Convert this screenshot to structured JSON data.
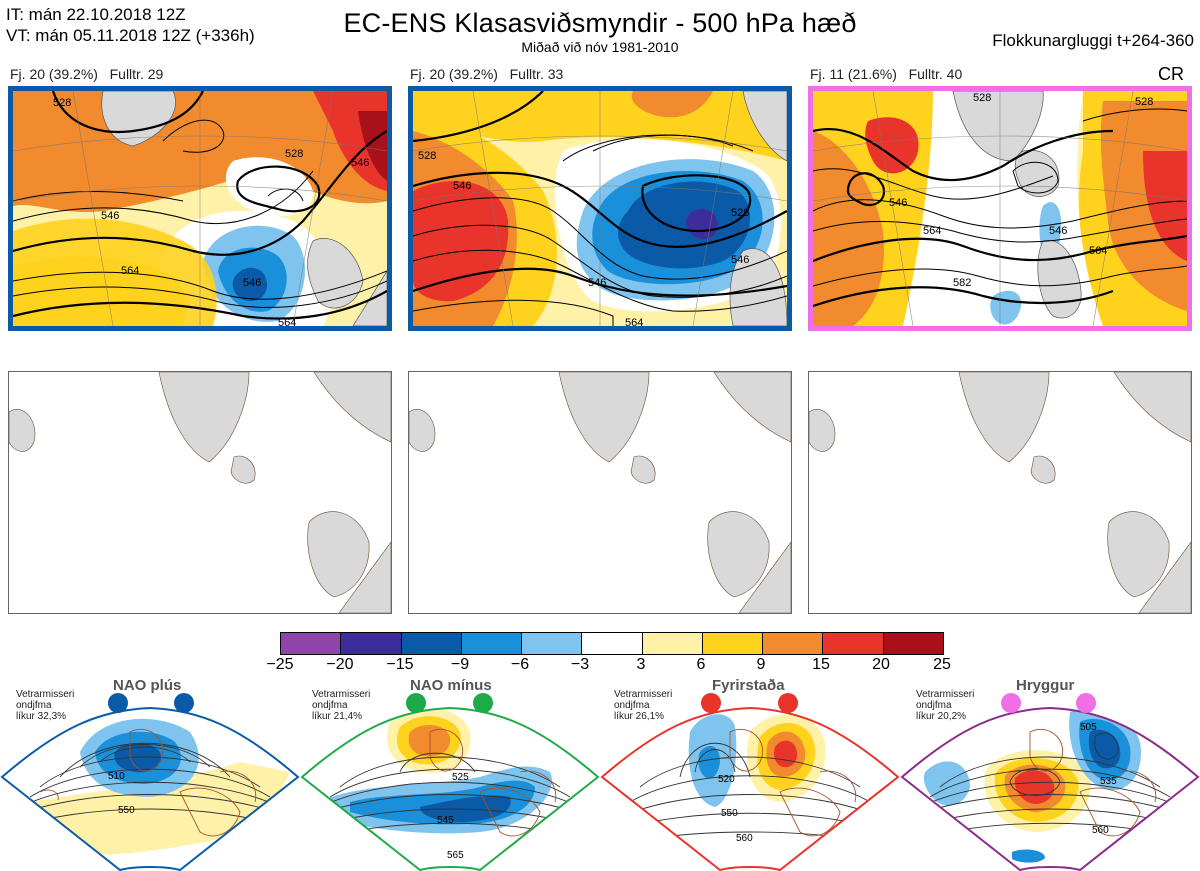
{
  "header": {
    "it_line": "IT: mán 22.10.2018 12Z",
    "vt_line": "VT: mán 05.11.2018 12Z  (+336h)",
    "title": "EC-ENS Klasasviðsmyndir - 500 hPa hæð",
    "subtitle": "Miðað við nóv 1981-2010",
    "window": "Flokkunargluggi t+264-360"
  },
  "clusters": [
    {
      "label": "Fj. 20 (39.2%)",
      "rep": "Fulltr. 29",
      "tag": "",
      "frame_color": "#0b5aa8",
      "contour_labels": [
        "528",
        "546",
        "564",
        "546",
        "546",
        "564",
        "528"
      ]
    },
    {
      "label": "Fj. 20 (39.2%)",
      "rep": "Fulltr. 33",
      "tag": "",
      "frame_color": "#0b5aa8",
      "contour_labels": [
        "546",
        "528",
        "546",
        "528",
        "546",
        "564"
      ]
    },
    {
      "label": "Fj. 11 (21.6%)",
      "rep": "Fulltr. 40",
      "tag": "CR",
      "frame_color": "#ee6fe6",
      "contour_labels": [
        "528",
        "546",
        "564",
        "546",
        "564",
        "582",
        "528"
      ]
    }
  ],
  "colorbar": {
    "ticks": [
      "−25",
      "−20",
      "−15",
      "−9",
      "−6",
      "−3",
      "3",
      "6",
      "9",
      "15",
      "20",
      "25"
    ],
    "colors": [
      "#8e44a8",
      "#3d2d9a",
      "#0b5aa8",
      "#1a8fda",
      "#7fc4ee",
      "#ffffff",
      "#fff2a8",
      "#ffd21e",
      "#f28a2e",
      "#e8342a",
      "#a8111a"
    ]
  },
  "regimes": [
    {
      "name": "NAO plús",
      "note": [
        "Vetrarmisseri",
        "ondjfma",
        "líkur 32,3%"
      ],
      "color": "#0b5aa8",
      "labels": [
        "510",
        "550"
      ]
    },
    {
      "name": "NAO mínus",
      "note": [
        "Vetrarmisseri",
        "ondjfma",
        "líkur 21,4%"
      ],
      "color": "#1faa4a",
      "labels": [
        "525",
        "545",
        "565"
      ]
    },
    {
      "name": "Fyrirstaða",
      "note": [
        "Vetrarmisseri",
        "ondjfma",
        "líkur 26,1%"
      ],
      "color": "#e8342a",
      "labels": [
        "520",
        "550",
        "560"
      ]
    },
    {
      "name": "Hryggur",
      "note": [
        "Vetrarmisseri",
        "ondjfma",
        "líkur 20,2%"
      ],
      "color": "#ee6fe6",
      "labels": [
        "505",
        "535",
        "560"
      ]
    }
  ]
}
